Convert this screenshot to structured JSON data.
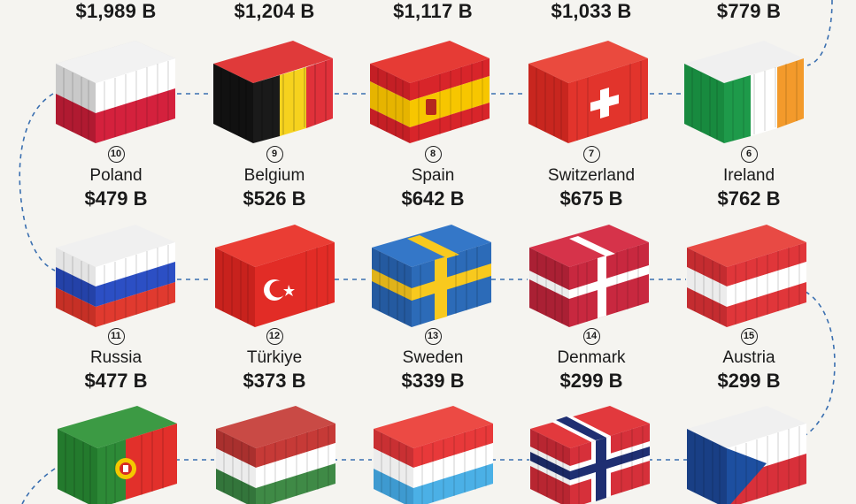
{
  "top_row_values": [
    "$1,989 B",
    "$1,204 B",
    "$1,117 B",
    "$1,033 B",
    "$779 B"
  ],
  "containers": [
    {
      "rank": "10",
      "country": "Poland",
      "value": "$479 B",
      "flag": "poland-flag"
    },
    {
      "rank": "9",
      "country": "Belgium",
      "value": "$526 B",
      "flag": "belgium-flag"
    },
    {
      "rank": "8",
      "country": "Spain",
      "value": "$642 B",
      "flag": "spain-flag"
    },
    {
      "rank": "7",
      "country": "Switzerland",
      "value": "$675 B",
      "flag": "switzerland-flag"
    },
    {
      "rank": "6",
      "country": "Ireland",
      "value": "$762 B",
      "flag": "ireland-flag"
    },
    {
      "rank": "11",
      "country": "Russia",
      "value": "$477 B",
      "flag": "russia-flag"
    },
    {
      "rank": "12",
      "country": "Türkiye",
      "value": "$373 B",
      "flag": "turkiye-flag"
    },
    {
      "rank": "13",
      "country": "Sweden",
      "value": "$339 B",
      "flag": "sweden-flag"
    },
    {
      "rank": "14",
      "country": "Denmark",
      "value": "$299 B",
      "flag": "denmark-flag"
    },
    {
      "rank": "15",
      "country": "Austria",
      "value": "$299 B",
      "flag": "austria-flag"
    }
  ],
  "bottom_row_flags": [
    "portugal-flag",
    "hungary-flag",
    "luxembourg-flag",
    "norway-flag",
    "czechia-flag"
  ],
  "colors": {
    "background": "#f5f4f0",
    "path_line": "#3a6fb0",
    "text": "#1a1a1a"
  }
}
